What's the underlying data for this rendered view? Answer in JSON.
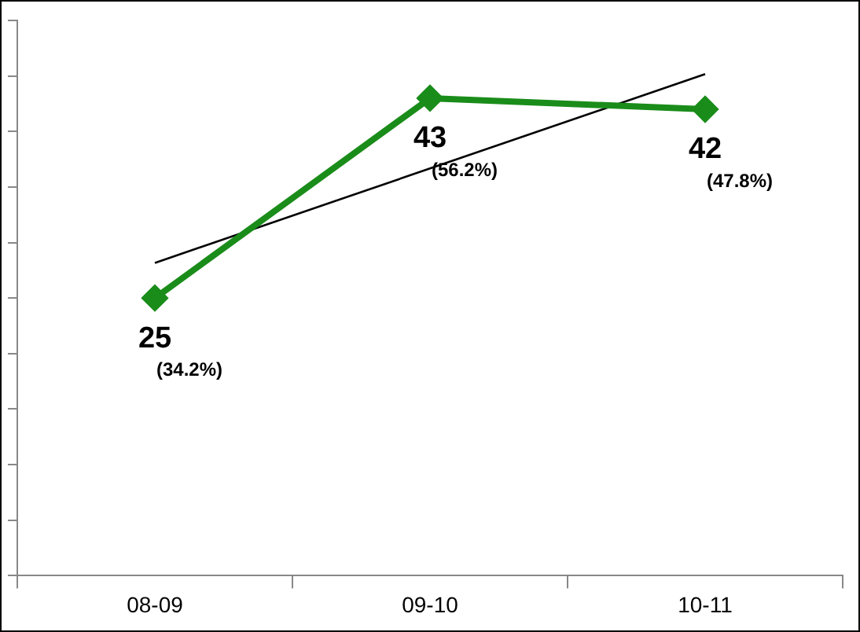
{
  "chart_data": {
    "type": "line",
    "categories": [
      "08-09",
      "09-10",
      "10-11"
    ],
    "series": [
      {
        "color": "#1a8c1a",
        "values": [
          25,
          43,
          42
        ],
        "value_labels": [
          "25",
          "43",
          "42"
        ],
        "marker": "diamond"
      },
      {
        "color": "#000000",
        "values": [
          28.17,
          36.67,
          45.17
        ],
        "marker": "none"
      }
    ],
    "ylim": [
      0,
      50
    ],
    "yticks": [
      {
        "value": 0,
        "label": null
      },
      {
        "value": 5,
        "label": null
      },
      {
        "value": 10,
        "label": null
      },
      {
        "value": 15,
        "label": null
      },
      {
        "value": 20,
        "label": null
      },
      {
        "value": 25,
        "label": null
      },
      {
        "value": 30,
        "label": null
      },
      {
        "value": 35,
        "label": null
      },
      {
        "value": 40,
        "label": null
      },
      {
        "value": 45,
        "label": null
      },
      {
        "value": 50,
        "label": null
      }
    ],
    "annotations": [
      "(34.2%)",
      "(56.2%)",
      "(47.8%)"
    ],
    "grid": false,
    "legend": false
  }
}
